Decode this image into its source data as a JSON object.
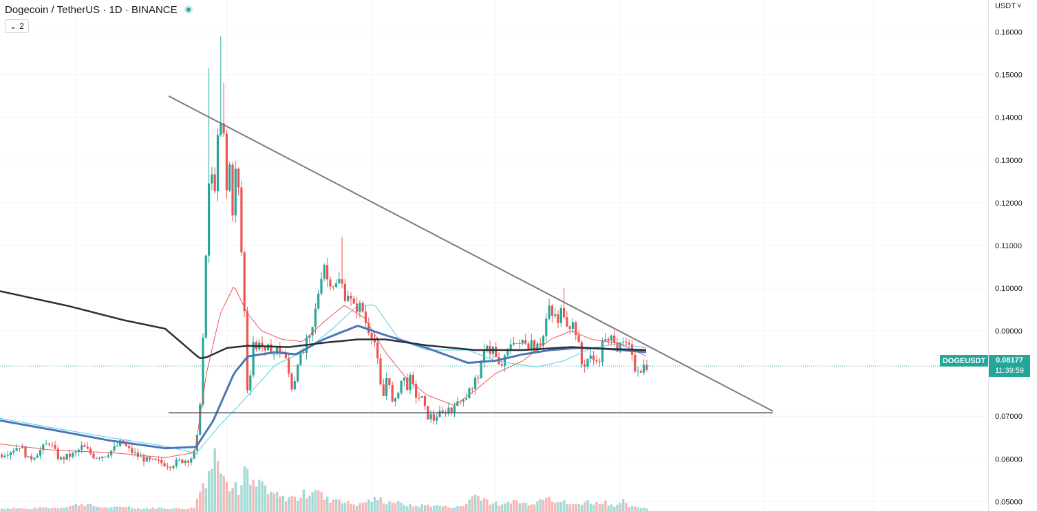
{
  "header": {
    "title": "Dogecoin / TetherUS · 1D · BINANCE",
    "indicator_count": "2",
    "chevron_icon": "chevron-down-icon",
    "status_icon": "market-open-dot-icon"
  },
  "price_axis": {
    "currency": "USDT",
    "ticks": [
      "0.16000",
      "0.15000",
      "0.14000",
      "0.13000",
      "0.12000",
      "0.11000",
      "0.10000",
      "0.09000",
      "0.07000",
      "0.06000",
      "0.05000"
    ]
  },
  "last_price": {
    "symbol": "DOGEUSDT",
    "price": "0.08177",
    "countdown": "11:39:59"
  },
  "colors": {
    "up": "#26a69a",
    "down": "#ef5350",
    "ma_fast": "#ef5350",
    "ma_mid": "#4dd0e1",
    "ma_slow": "#4a76b8",
    "ma_long": "#2a2e39",
    "trendline": "#787b86"
  },
  "chart_data": {
    "type": "candlestick",
    "symbol": "DOGEUSDT",
    "interval": "1D",
    "exchange": "BINANCE",
    "ylim": [
      0.0478,
      0.1675
    ],
    "grid": true,
    "last_price": 0.08177,
    "anchors": [
      [
        0,
        0.061
      ],
      [
        15,
        0.062
      ],
      [
        28,
        0.0632
      ],
      [
        40,
        0.0598
      ],
      [
        55,
        0.0617
      ],
      [
        70,
        0.064
      ],
      [
        85,
        0.0598
      ],
      [
        95,
        0.0605
      ],
      [
        108,
        0.0612
      ],
      [
        118,
        0.063
      ],
      [
        135,
        0.0606
      ],
      [
        150,
        0.0608
      ],
      [
        165,
        0.0625
      ],
      [
        175,
        0.064
      ],
      [
        185,
        0.0622
      ],
      [
        200,
        0.0605
      ],
      [
        215,
        0.0595
      ],
      [
        230,
        0.0592
      ],
      [
        245,
        0.0585
      ],
      [
        260,
        0.0595
      ],
      [
        275,
        0.06
      ],
      [
        283,
        0.062
      ],
      [
        288,
        0.07
      ],
      [
        292,
        0.083
      ],
      [
        296,
        0.098
      ],
      [
        300,
        0.118
      ],
      [
        304,
        0.131
      ],
      [
        308,
        0.122
      ],
      [
        312,
        0.125
      ],
      [
        316,
        0.138
      ],
      [
        320,
        0.138
      ],
      [
        324,
        0.135
      ],
      [
        328,
        0.122
      ],
      [
        332,
        0.129
      ],
      [
        336,
        0.117
      ],
      [
        340,
        0.128
      ],
      [
        345,
        0.123
      ],
      [
        350,
        0.106
      ],
      [
        355,
        0.09
      ],
      [
        358,
        0.076
      ],
      [
        362,
        0.08
      ],
      [
        366,
        0.088
      ],
      [
        370,
        0.085
      ],
      [
        375,
        0.088
      ],
      [
        380,
        0.086
      ],
      [
        385,
        0.084
      ],
      [
        390,
        0.087
      ],
      [
        395,
        0.084
      ],
      [
        400,
        0.086
      ],
      [
        405,
        0.085
      ],
      [
        410,
        0.085
      ],
      [
        416,
        0.082
      ],
      [
        420,
        0.078
      ],
      [
        424,
        0.076
      ],
      [
        428,
        0.08
      ],
      [
        432,
        0.084
      ],
      [
        436,
        0.084
      ],
      [
        440,
        0.085
      ],
      [
        445,
        0.088
      ],
      [
        450,
        0.088
      ],
      [
        455,
        0.093
      ],
      [
        460,
        0.098
      ],
      [
        465,
        0.103
      ],
      [
        470,
        0.106
      ],
      [
        475,
        0.101
      ],
      [
        480,
        0.102
      ],
      [
        485,
        0.1
      ],
      [
        490,
        0.102
      ],
      [
        495,
        0.101
      ],
      [
        500,
        0.098
      ],
      [
        505,
        0.099
      ],
      [
        510,
        0.096
      ],
      [
        515,
        0.095
      ],
      [
        520,
        0.096
      ],
      [
        525,
        0.095
      ],
      [
        530,
        0.092
      ],
      [
        535,
        0.09
      ],
      [
        540,
        0.089
      ],
      [
        545,
        0.086
      ],
      [
        550,
        0.078
      ],
      [
        555,
        0.074
      ],
      [
        560,
        0.079
      ],
      [
        565,
        0.078
      ],
      [
        570,
        0.071
      ],
      [
        575,
        0.075
      ],
      [
        580,
        0.078
      ],
      [
        585,
        0.079
      ],
      [
        590,
        0.077
      ],
      [
        595,
        0.079
      ],
      [
        600,
        0.076
      ],
      [
        605,
        0.074
      ],
      [
        610,
        0.075
      ],
      [
        615,
        0.072
      ],
      [
        620,
        0.07
      ],
      [
        625,
        0.07
      ],
      [
        630,
        0.069
      ],
      [
        635,
        0.071
      ],
      [
        640,
        0.07
      ],
      [
        645,
        0.071
      ],
      [
        650,
        0.072
      ],
      [
        655,
        0.071
      ],
      [
        660,
        0.074
      ],
      [
        665,
        0.072
      ],
      [
        670,
        0.075
      ],
      [
        675,
        0.074
      ],
      [
        680,
        0.077
      ],
      [
        685,
        0.076
      ],
      [
        690,
        0.079
      ],
      [
        695,
        0.08
      ],
      [
        700,
        0.083
      ],
      [
        705,
        0.088
      ],
      [
        710,
        0.085
      ],
      [
        715,
        0.086
      ],
      [
        720,
        0.083
      ],
      [
        725,
        0.081
      ],
      [
        730,
        0.083
      ],
      [
        735,
        0.084
      ],
      [
        740,
        0.087
      ],
      [
        745,
        0.088
      ],
      [
        750,
        0.087
      ],
      [
        755,
        0.086
      ],
      [
        760,
        0.089
      ],
      [
        765,
        0.086
      ],
      [
        770,
        0.088
      ],
      [
        775,
        0.086
      ],
      [
        780,
        0.088
      ],
      [
        785,
        0.087
      ],
      [
        790,
        0.09
      ],
      [
        795,
        0.096
      ],
      [
        800,
        0.093
      ],
      [
        805,
        0.094
      ],
      [
        810,
        0.091
      ],
      [
        815,
        0.096
      ],
      [
        820,
        0.093
      ],
      [
        825,
        0.091
      ],
      [
        830,
        0.092
      ],
      [
        835,
        0.09
      ],
      [
        840,
        0.086
      ],
      [
        845,
        0.081
      ],
      [
        850,
        0.083
      ],
      [
        855,
        0.084
      ],
      [
        860,
        0.083
      ],
      [
        865,
        0.084
      ],
      [
        870,
        0.082
      ],
      [
        875,
        0.09
      ],
      [
        880,
        0.086
      ],
      [
        885,
        0.088
      ],
      [
        890,
        0.089
      ],
      [
        895,
        0.086
      ],
      [
        900,
        0.088
      ],
      [
        905,
        0.086
      ],
      [
        910,
        0.087
      ],
      [
        915,
        0.085
      ],
      [
        920,
        0.081
      ],
      [
        925,
        0.0815
      ],
      [
        930,
        0.081
      ],
      [
        935,
        0.082
      ],
      [
        940,
        0.0818
      ]
    ],
    "spikes": [
      {
        "x": 304,
        "high": 0.1515
      },
      {
        "x": 319,
        "high": 0.159
      },
      {
        "x": 324,
        "high": 0.148
      },
      {
        "x": 497,
        "high": 0.112
      },
      {
        "x": 816,
        "high": 0.1
      }
    ],
    "moving_averages": {
      "ma_long": [
        [
          0,
          0.0993
        ],
        [
          100,
          0.0958
        ],
        [
          180,
          0.0925
        ],
        [
          240,
          0.0905
        ],
        [
          290,
          0.0836
        ],
        [
          300,
          0.0838
        ],
        [
          330,
          0.086
        ],
        [
          360,
          0.0865
        ],
        [
          420,
          0.0862
        ],
        [
          470,
          0.0872
        ],
        [
          520,
          0.088
        ],
        [
          560,
          0.088
        ],
        [
          620,
          0.0866
        ],
        [
          690,
          0.0855
        ],
        [
          760,
          0.0855
        ],
        [
          830,
          0.0862
        ],
        [
          880,
          0.0858
        ],
        [
          940,
          0.0855
        ]
      ],
      "ma_slow": [
        [
          0,
          0.069
        ],
        [
          80,
          0.0667
        ],
        [
          160,
          0.0643
        ],
        [
          240,
          0.0625
        ],
        [
          285,
          0.0628
        ],
        [
          310,
          0.069
        ],
        [
          340,
          0.08
        ],
        [
          360,
          0.084
        ],
        [
          400,
          0.085
        ],
        [
          430,
          0.0845
        ],
        [
          470,
          0.088
        ],
        [
          520,
          0.0912
        ],
        [
          560,
          0.089
        ],
        [
          620,
          0.086
        ],
        [
          680,
          0.0825
        ],
        [
          720,
          0.083
        ],
        [
          760,
          0.0845
        ],
        [
          800,
          0.0855
        ],
        [
          840,
          0.086
        ],
        [
          880,
          0.0858
        ],
        [
          940,
          0.085
        ]
      ],
      "ma_mid": [
        [
          0,
          0.0695
        ],
        [
          80,
          0.0672
        ],
        [
          160,
          0.065
        ],
        [
          240,
          0.063
        ],
        [
          285,
          0.0613
        ],
        [
          320,
          0.068
        ],
        [
          350,
          0.073
        ],
        [
          400,
          0.082
        ],
        [
          440,
          0.085
        ],
        [
          480,
          0.09
        ],
        [
          520,
          0.096
        ],
        [
          545,
          0.096
        ],
        [
          580,
          0.088
        ],
        [
          620,
          0.0855
        ],
        [
          680,
          0.0855
        ],
        [
          720,
          0.083
        ],
        [
          780,
          0.0815
        ],
        [
          820,
          0.083
        ],
        [
          860,
          0.086
        ],
        [
          900,
          0.087
        ],
        [
          940,
          0.086
        ]
      ],
      "ma_fast": [
        [
          0,
          0.0635
        ],
        [
          80,
          0.062
        ],
        [
          160,
          0.0615
        ],
        [
          240,
          0.0603
        ],
        [
          283,
          0.0615
        ],
        [
          300,
          0.08
        ],
        [
          320,
          0.094
        ],
        [
          340,
          0.1005
        ],
        [
          360,
          0.094
        ],
        [
          380,
          0.09
        ],
        [
          410,
          0.088
        ],
        [
          440,
          0.0875
        ],
        [
          470,
          0.092
        ],
        [
          500,
          0.096
        ],
        [
          530,
          0.093
        ],
        [
          560,
          0.085
        ],
        [
          590,
          0.079
        ],
        [
          620,
          0.075
        ],
        [
          660,
          0.0725
        ],
        [
          690,
          0.076
        ],
        [
          720,
          0.08
        ],
        [
          760,
          0.083
        ],
        [
          800,
          0.088
        ],
        [
          830,
          0.09
        ],
        [
          860,
          0.088
        ],
        [
          900,
          0.087
        ],
        [
          940,
          0.084
        ]
      ]
    },
    "volume": [
      [
        0,
        0.4
      ],
      [
        20,
        0.5
      ],
      [
        40,
        0.3
      ],
      [
        60,
        0.6
      ],
      [
        80,
        0.5
      ],
      [
        100,
        0.8
      ],
      [
        118,
        1.2
      ],
      [
        140,
        0.7
      ],
      [
        160,
        0.5
      ],
      [
        180,
        0.8
      ],
      [
        200,
        0.4
      ],
      [
        230,
        0.5
      ],
      [
        260,
        0.4
      ],
      [
        280,
        0.5
      ],
      [
        286,
        2.2
      ],
      [
        290,
        3.8
      ],
      [
        294,
        4.8
      ],
      [
        298,
        5.4
      ],
      [
        302,
        6.8
      ],
      [
        306,
        7.6
      ],
      [
        310,
        9.0
      ],
      [
        314,
        10.0
      ],
      [
        318,
        8.2
      ],
      [
        322,
        8.6
      ],
      [
        326,
        6.4
      ],
      [
        330,
        5.2
      ],
      [
        335,
        3.6
      ],
      [
        340,
        5.0
      ],
      [
        345,
        2.6
      ],
      [
        350,
        6.0
      ],
      [
        355,
        7.0
      ],
      [
        360,
        4.6
      ],
      [
        370,
        4.0
      ],
      [
        380,
        4.8
      ],
      [
        390,
        2.4
      ],
      [
        400,
        2.8
      ],
      [
        410,
        2.0
      ],
      [
        420,
        2.4
      ],
      [
        430,
        2.0
      ],
      [
        440,
        2.8
      ],
      [
        450,
        3.2
      ],
      [
        455,
        4.2
      ],
      [
        460,
        3.4
      ],
      [
        470,
        2.0
      ],
      [
        480,
        1.8
      ],
      [
        490,
        2.2
      ],
      [
        500,
        1.4
      ],
      [
        510,
        1.2
      ],
      [
        520,
        1.0
      ],
      [
        530,
        1.6
      ],
      [
        540,
        1.8
      ],
      [
        550,
        2.0
      ],
      [
        560,
        1.4
      ],
      [
        570,
        1.6
      ],
      [
        580,
        1.2
      ],
      [
        590,
        1.0
      ],
      [
        600,
        0.8
      ],
      [
        620,
        1.0
      ],
      [
        640,
        0.8
      ],
      [
        660,
        0.6
      ],
      [
        675,
        0.9
      ],
      [
        680,
        2.2
      ],
      [
        690,
        2.6
      ],
      [
        700,
        2.4
      ],
      [
        710,
        1.4
      ],
      [
        720,
        1.2
      ],
      [
        730,
        0.8
      ],
      [
        740,
        1.8
      ],
      [
        750,
        1.6
      ],
      [
        760,
        1.2
      ],
      [
        770,
        1.4
      ],
      [
        780,
        1.6
      ],
      [
        790,
        2.6
      ],
      [
        795,
        3.4
      ],
      [
        800,
        2.0
      ],
      [
        810,
        1.6
      ],
      [
        820,
        1.4
      ],
      [
        830,
        1.0
      ],
      [
        840,
        1.2
      ],
      [
        850,
        1.6
      ],
      [
        860,
        1.4
      ],
      [
        870,
        1.2
      ],
      [
        875,
        1.8
      ],
      [
        880,
        1.4
      ],
      [
        890,
        1.0
      ],
      [
        900,
        1.2
      ],
      [
        905,
        1.6
      ],
      [
        910,
        0.8
      ],
      [
        920,
        0.6
      ],
      [
        930,
        0.6
      ],
      [
        940,
        0.4
      ]
    ],
    "drawings": {
      "descending_trendline": [
        [
          245,
          0.145
        ],
        [
          1123,
          0.0712
        ]
      ],
      "horizontal_support": [
        [
          245,
          0.0708
        ],
        [
          1123,
          0.0708
        ]
      ]
    }
  }
}
